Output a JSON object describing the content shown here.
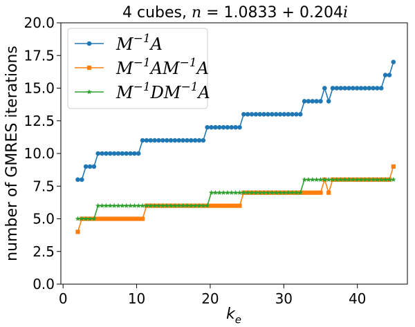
{
  "chart_data": {
    "type": "line",
    "title": "4 cubes, n = 1.0833 + 0.204i",
    "xlabel": "k_e",
    "ylabel": "number of GMRES iterations",
    "xlim": [
      -0.3,
      46.8
    ],
    "ylim": [
      0,
      20
    ],
    "xticks": [
      0,
      10,
      20,
      30,
      40
    ],
    "xtick_labels": [
      "0",
      "10",
      "20",
      "30",
      "40"
    ],
    "yticks": [
      0,
      2.5,
      5,
      7.5,
      10,
      12.5,
      15,
      17.5,
      20
    ],
    "ytick_labels": [
      "0.0",
      "2.5",
      "5.0",
      "7.5",
      "10.0",
      "12.5",
      "15.0",
      "17.5",
      "20.0"
    ],
    "grid": false,
    "legend_position": "top-left",
    "x": [
      2.0,
      2.55,
      3.1,
      3.65,
      4.2,
      4.75,
      5.3,
      5.85,
      6.4,
      6.95,
      7.5,
      8.05,
      8.6,
      9.15,
      9.7,
      10.25,
      10.8,
      11.35,
      11.9,
      12.45,
      13.0,
      13.55,
      14.1,
      14.65,
      15.2,
      15.75,
      16.3,
      16.85,
      17.4,
      17.95,
      18.5,
      19.05,
      19.6,
      20.15,
      20.7,
      21.25,
      21.8,
      22.35,
      22.9,
      23.45,
      24.0,
      24.55,
      25.1,
      25.65,
      26.2,
      26.75,
      27.3,
      27.85,
      28.4,
      28.95,
      29.5,
      30.05,
      30.6,
      31.15,
      31.7,
      32.25,
      32.8,
      33.35,
      33.9,
      34.45,
      35.0,
      35.55,
      36.1,
      36.65,
      37.2,
      37.75,
      38.3,
      38.85,
      39.4,
      39.95,
      40.5,
      41.05,
      41.6,
      42.15,
      42.7,
      43.25,
      43.8,
      44.35,
      44.9
    ],
    "series": [
      {
        "name": "M^{-1}A",
        "color": "#1f77b4",
        "marker": "circle",
        "values": [
          8,
          8,
          9,
          9,
          9,
          10,
          10,
          10,
          10,
          10,
          10,
          10,
          10,
          10,
          10,
          10,
          11,
          11,
          11,
          11,
          11,
          11,
          11,
          11,
          11,
          11,
          11,
          11,
          11,
          11,
          11,
          11,
          12,
          12,
          12,
          12,
          12,
          12,
          12,
          12,
          12,
          13,
          13,
          13,
          13,
          13,
          13,
          13,
          13,
          13,
          13,
          13,
          13,
          13,
          13,
          13,
          14,
          14,
          14,
          14,
          14,
          15,
          14,
          15,
          15,
          15,
          15,
          15,
          15,
          15,
          15,
          15,
          15,
          15,
          15,
          15,
          16,
          16,
          17
        ]
      },
      {
        "name": "M^{-1}AM^{-1}A",
        "color": "#ff7f0e",
        "marker": "square",
        "values": [
          4,
          5,
          5,
          5,
          5,
          5,
          5,
          5,
          5,
          5,
          5,
          5,
          5,
          5,
          5,
          5,
          5,
          6,
          6,
          6,
          6,
          6,
          6,
          6,
          6,
          6,
          6,
          6,
          6,
          6,
          6,
          6,
          6,
          6,
          6,
          6,
          6,
          6,
          6,
          6,
          6,
          7,
          7,
          7,
          7,
          7,
          7,
          7,
          7,
          7,
          7,
          7,
          7,
          7,
          7,
          7,
          7,
          7,
          7,
          7,
          7,
          8,
          7,
          8,
          8,
          8,
          8,
          8,
          8,
          8,
          8,
          8,
          8,
          8,
          8,
          8,
          8,
          8,
          9
        ]
      },
      {
        "name": "M^{-1}DM^{-1}A",
        "color": "#2ca02c",
        "marker": "star",
        "values": [
          5,
          5,
          5,
          5,
          5,
          6,
          6,
          6,
          6,
          6,
          6,
          6,
          6,
          6,
          6,
          6,
          6,
          6,
          6,
          6,
          6,
          6,
          6,
          6,
          6,
          6,
          6,
          6,
          6,
          6,
          6,
          6,
          6,
          7,
          7,
          7,
          7,
          7,
          7,
          7,
          7,
          7,
          7,
          7,
          7,
          7,
          7,
          7,
          7,
          7,
          7,
          7,
          7,
          7,
          7,
          7,
          8,
          8,
          8,
          8,
          8,
          8,
          8,
          8,
          8,
          8,
          8,
          8,
          8,
          8,
          8,
          8,
          8,
          8,
          8,
          8,
          8,
          8,
          8
        ]
      }
    ]
  }
}
